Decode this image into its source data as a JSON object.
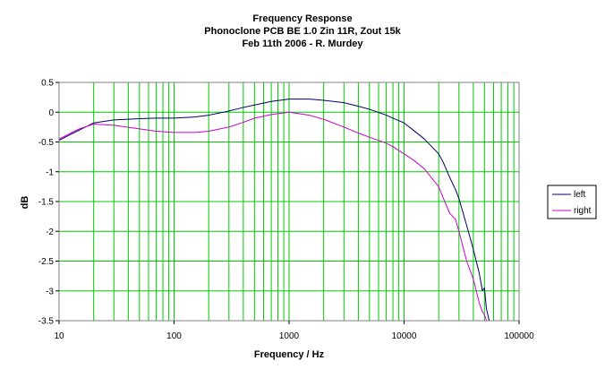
{
  "chart_data": {
    "type": "line",
    "title": "Frequency Response",
    "subtitle_lines": [
      "Phonoclone PCB BE 1.0 Zin 11R, Zout 15k",
      "Feb 11th 2006 - R. Murdey"
    ],
    "xlabel": "Frequency / Hz",
    "ylabel": "dB",
    "x_scale": "log",
    "xlim": [
      10,
      100000
    ],
    "ylim": [
      -3.5,
      0.5
    ],
    "x_ticks": [
      10,
      100,
      1000,
      10000,
      100000
    ],
    "x_tick_labels": [
      "10",
      "100",
      "1000",
      "10000",
      "100000"
    ],
    "y_ticks": [
      0.5,
      0,
      -0.5,
      -1,
      -1.5,
      -2,
      -2.5,
      -3,
      -3.5
    ],
    "y_tick_labels": [
      "0.5",
      "0",
      "-0.5",
      "-1",
      "-1.5",
      "-2",
      "-2.5",
      "-3",
      "-3.5"
    ],
    "grid": true,
    "legend_position": "right",
    "series": [
      {
        "name": "left",
        "color": "#000066",
        "x": [
          10,
          15,
          20,
          30,
          50,
          70,
          100,
          150,
          200,
          300,
          400,
          500,
          700,
          1000,
          1500,
          2000,
          3000,
          4000,
          5000,
          7000,
          8000,
          10000,
          12000,
          15000,
          20000,
          22000,
          25000,
          28000,
          30000,
          35000,
          40000,
          45000,
          48000,
          50000,
          52000,
          55000
        ],
        "y": [
          -0.47,
          -0.3,
          -0.18,
          -0.13,
          -0.11,
          -0.1,
          -0.1,
          -0.08,
          -0.05,
          0.02,
          0.08,
          0.12,
          0.18,
          0.22,
          0.22,
          0.2,
          0.16,
          0.1,
          0.05,
          -0.05,
          -0.1,
          -0.18,
          -0.3,
          -0.45,
          -0.7,
          -0.85,
          -1.1,
          -1.3,
          -1.45,
          -1.9,
          -2.3,
          -2.7,
          -3.0,
          -2.95,
          -3.3,
          -3.5
        ]
      },
      {
        "name": "right",
        "color": "#cc00cc",
        "x": [
          10,
          15,
          20,
          30,
          50,
          70,
          100,
          150,
          200,
          300,
          400,
          500,
          700,
          1000,
          1500,
          2000,
          3000,
          4000,
          5000,
          7000,
          8000,
          10000,
          12000,
          15000,
          20000,
          22000,
          25000,
          28000,
          30000,
          35000,
          40000,
          45000,
          48000,
          50000,
          52000
        ],
        "y": [
          -0.45,
          -0.28,
          -0.2,
          -0.22,
          -0.28,
          -0.32,
          -0.34,
          -0.34,
          -0.32,
          -0.25,
          -0.17,
          -0.1,
          -0.04,
          0.0,
          -0.05,
          -0.12,
          -0.25,
          -0.35,
          -0.42,
          -0.52,
          -0.58,
          -0.7,
          -0.8,
          -0.95,
          -1.25,
          -1.45,
          -1.7,
          -1.8,
          -2.0,
          -2.5,
          -2.8,
          -3.2,
          -3.35,
          -3.4,
          -3.5
        ]
      }
    ]
  }
}
